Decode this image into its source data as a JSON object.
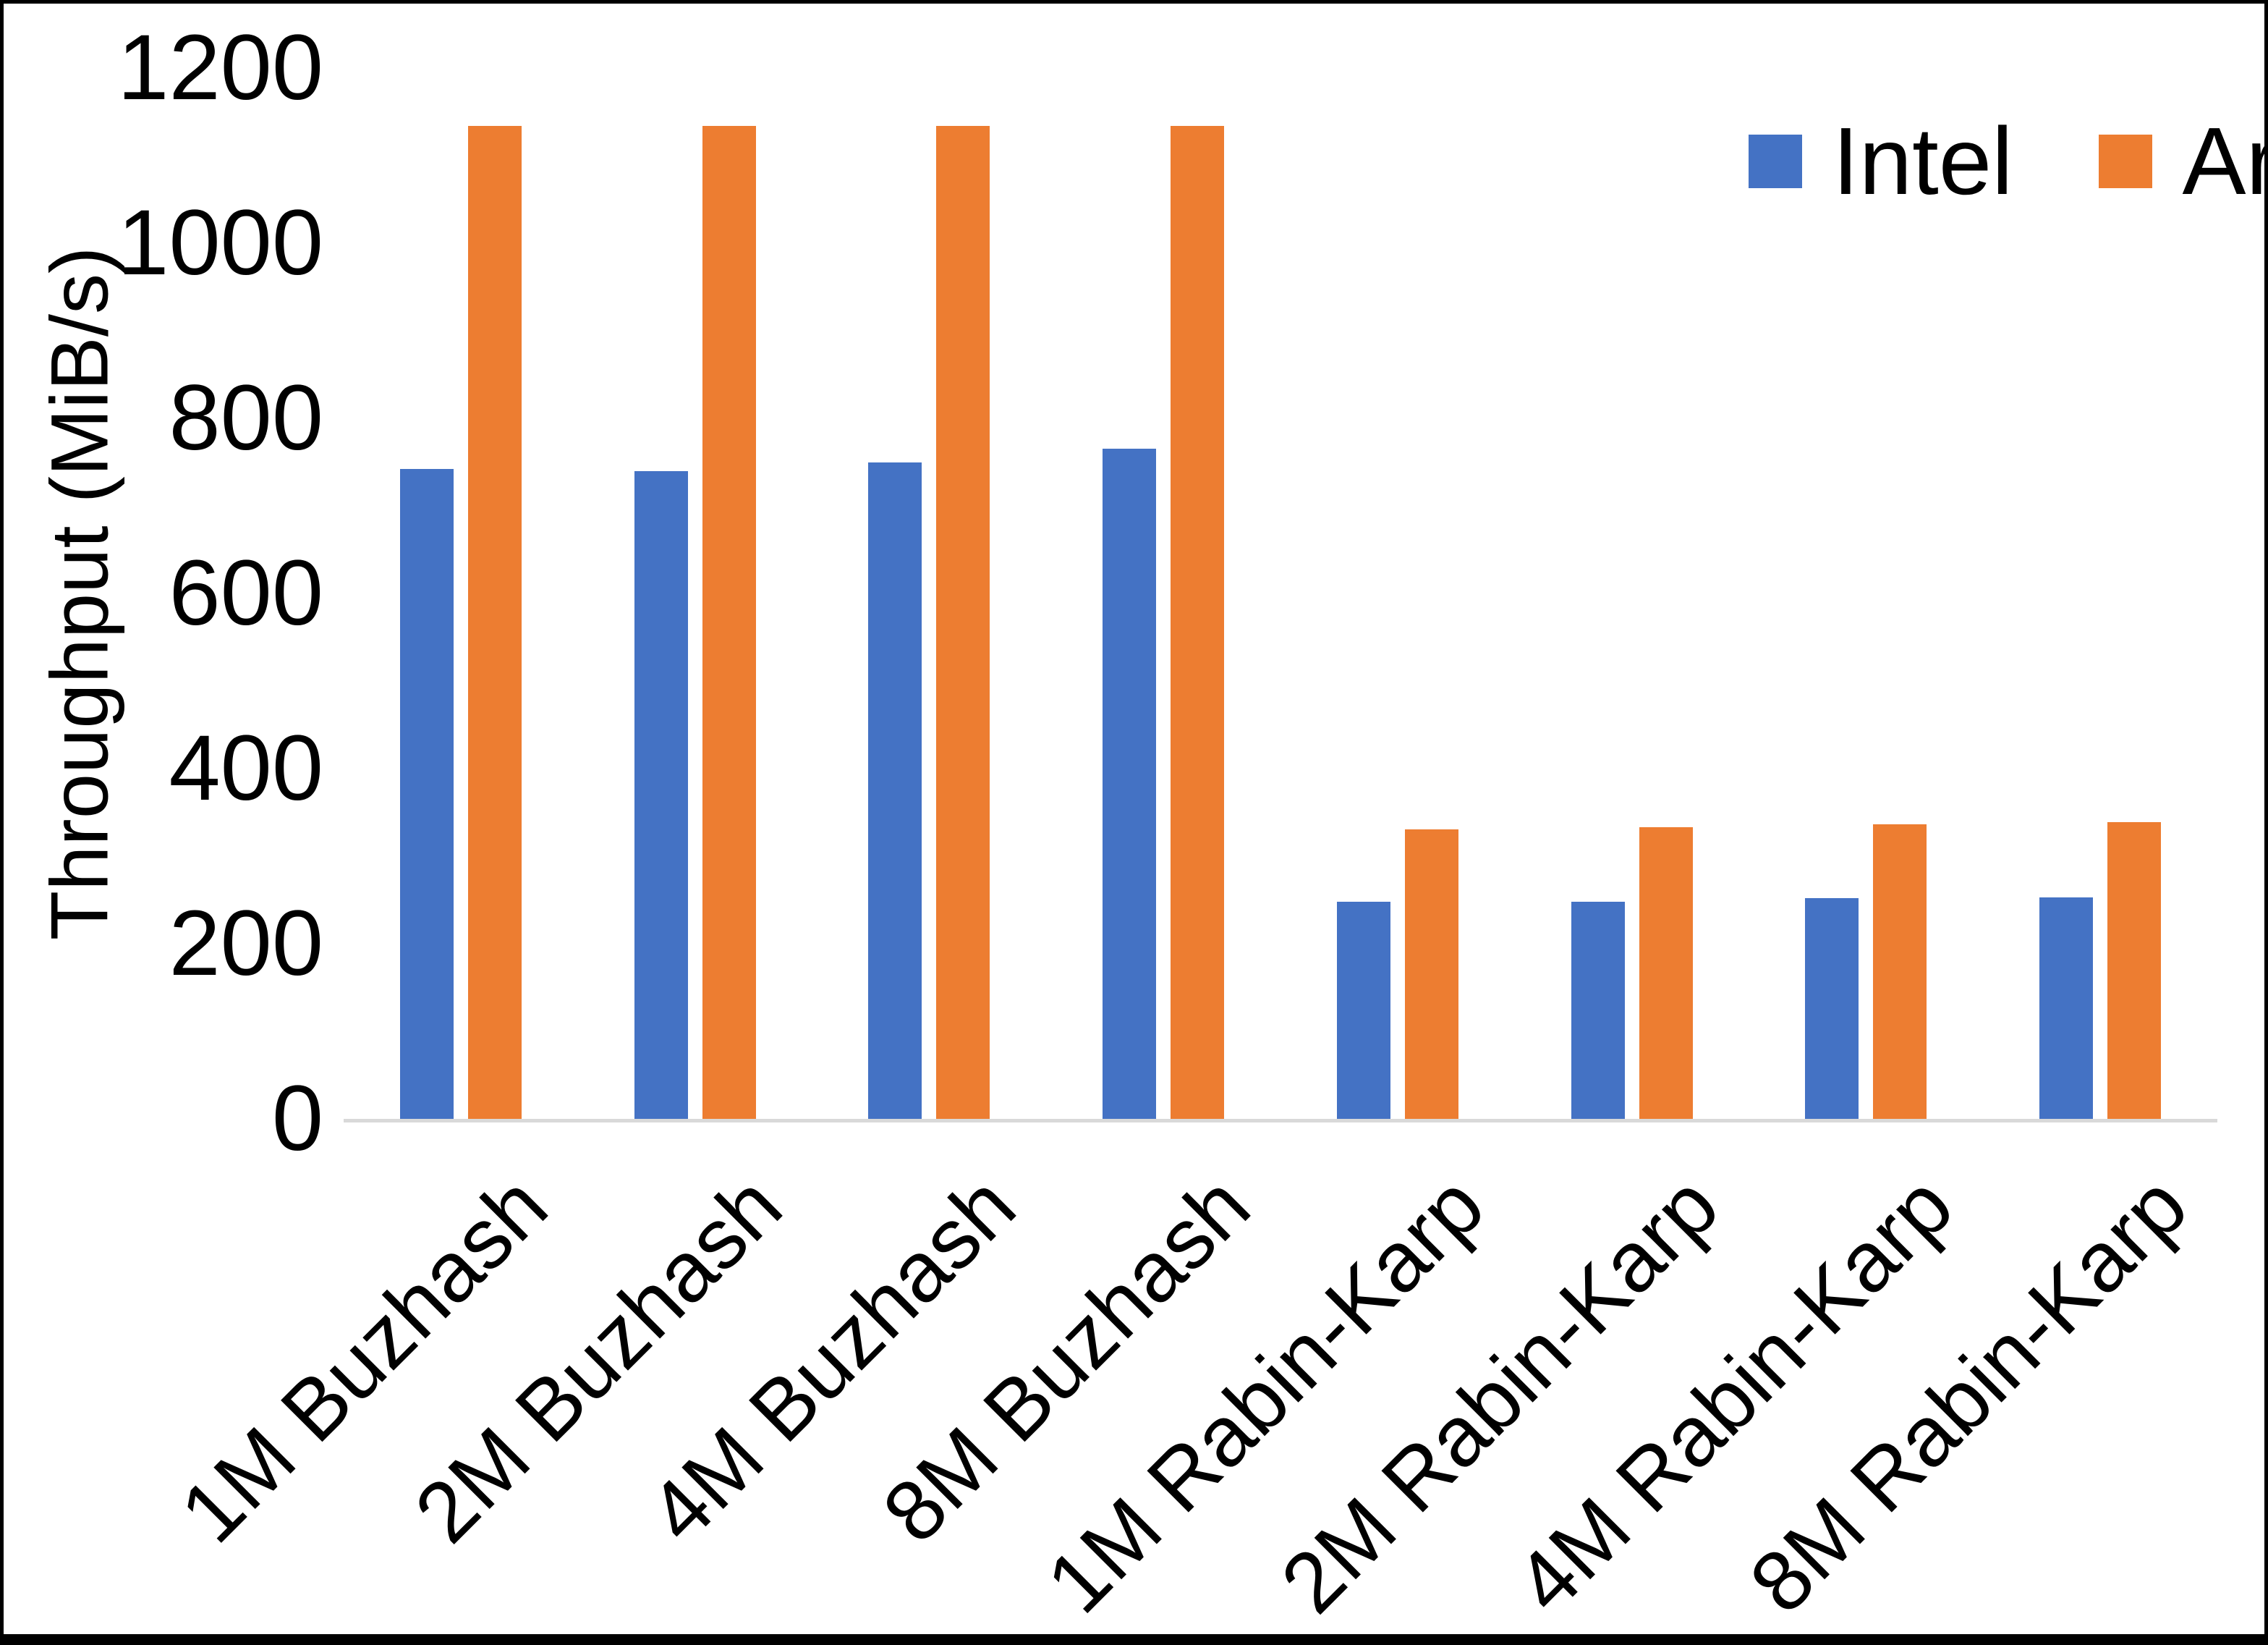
{
  "chart_data": {
    "type": "bar",
    "title": "",
    "ylabel": "Throughput (MiB/s)",
    "xlabel": "",
    "categories": [
      "1M Buzhash",
      "2M Buzhash",
      "4M Buzhash",
      "8M Buzhash",
      "1M Rabin-Karp",
      "2M Rabin-Karp",
      "4M Rabin-Karp",
      "8M Rabin-Karp"
    ],
    "series": [
      {
        "name": "Intel",
        "color": "#4472C4",
        "values": [
          742,
          740,
          750,
          765,
          248,
          248,
          252,
          253
        ]
      },
      {
        "name": "Arm",
        "color": "#ED7D31",
        "values": [
          1134,
          1134,
          1134,
          1134,
          331,
          333,
          336,
          339
        ]
      }
    ],
    "ylim": [
      0,
      1200
    ],
    "yticks": [
      0,
      200,
      400,
      600,
      800,
      1000,
      1200
    ],
    "grid": "off",
    "legend_position": "top-right",
    "axis_line_color": "#d9d9d9"
  }
}
